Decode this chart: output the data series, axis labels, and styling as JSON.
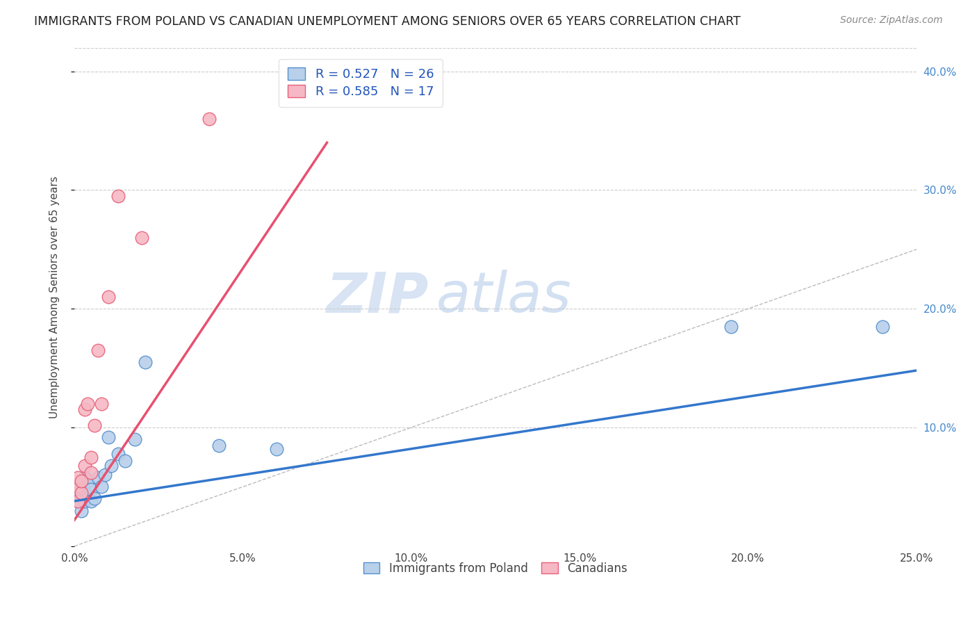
{
  "title": "IMMIGRANTS FROM POLAND VS CANADIAN UNEMPLOYMENT AMONG SENIORS OVER 65 YEARS CORRELATION CHART",
  "source": "Source: ZipAtlas.com",
  "ylabel": "Unemployment Among Seniors over 65 years",
  "xlim": [
    0,
    0.25
  ],
  "ylim": [
    0,
    0.42
  ],
  "xticks": [
    0.0,
    0.05,
    0.1,
    0.15,
    0.2,
    0.25
  ],
  "yticks": [
    0.0,
    0.1,
    0.2,
    0.3,
    0.4
  ],
  "legend_labels": [
    "Immigrants from Poland",
    "Canadians"
  ],
  "R_blue": 0.527,
  "N_blue": 26,
  "R_pink": 0.585,
  "N_pink": 17,
  "blue_fill": "#b8d0ea",
  "pink_fill": "#f5b8c4",
  "blue_edge": "#5590cc",
  "pink_edge": "#e8607a",
  "blue_line_color": "#3377cc",
  "pink_line_color": "#e85070",
  "watermark_zip": "ZIP",
  "watermark_atlas": "atlas",
  "blue_scatter_x": [
    0.001,
    0.001,
    0.002,
    0.002,
    0.002,
    0.003,
    0.003,
    0.003,
    0.004,
    0.004,
    0.005,
    0.005,
    0.006,
    0.007,
    0.008,
    0.009,
    0.01,
    0.011,
    0.013,
    0.015,
    0.018,
    0.021,
    0.043,
    0.06,
    0.195,
    0.24
  ],
  "blue_scatter_y": [
    0.038,
    0.045,
    0.03,
    0.042,
    0.05,
    0.038,
    0.045,
    0.058,
    0.04,
    0.055,
    0.038,
    0.048,
    0.04,
    0.058,
    0.05,
    0.06,
    0.092,
    0.068,
    0.078,
    0.072,
    0.09,
    0.155,
    0.085,
    0.082,
    0.185,
    0.185
  ],
  "pink_scatter_x": [
    0.001,
    0.001,
    0.001,
    0.002,
    0.002,
    0.003,
    0.003,
    0.004,
    0.005,
    0.005,
    0.006,
    0.007,
    0.008,
    0.01,
    0.013,
    0.02,
    0.04
  ],
  "pink_scatter_y": [
    0.038,
    0.05,
    0.058,
    0.045,
    0.055,
    0.068,
    0.115,
    0.12,
    0.062,
    0.075,
    0.102,
    0.165,
    0.12,
    0.21,
    0.295,
    0.26,
    0.36
  ],
  "blue_trend_x": [
    0.0,
    0.25
  ],
  "blue_trend_y": [
    0.038,
    0.148
  ],
  "pink_trend_x": [
    0.0,
    0.075
  ],
  "pink_trend_y": [
    0.022,
    0.34
  ]
}
